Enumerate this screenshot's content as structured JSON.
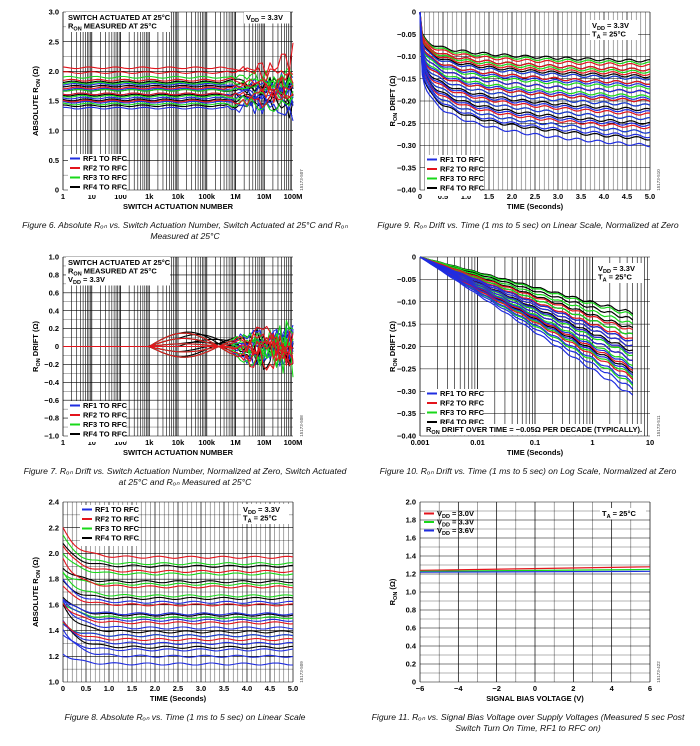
{
  "figure_ids": [
    "15173-507",
    "15173-508",
    "15173-509",
    "15173-510",
    "15173-511",
    "15173-422"
  ],
  "captions": [
    "Figure 6. Absolute Rₒₙ vs. Switch Actuation Number, Switch Actuated at 25°C and Rₒₙ Measured at 25°C",
    "Figure 7. Rₒₙ Drift vs. Switch Actuation Number, Normalized at Zero, Switch Actuated at 25°C and Rₒₙ Measured at 25°C",
    "Figure 8. Absolute Rₒₙ vs. Time (1 ms to 5 sec) on Linear Scale",
    "Figure 9. Rₒₙ Drift vs. Time (1 ms to 5 sec) on Linear Scale, Normalized at Zero",
    "Figure 10. Rₒₙ Drift vs. Time (1 ms to 5 sec) on Log Scale, Normalized at Zero",
    "Figure 11. Rₒₙ vs. Signal Bias Voltage over Supply Voltages (Measured 5 sec Post Switch Turn On Time, RF1 to RFC on)"
  ],
  "colors": {
    "rf1": "#1f2de0",
    "rf2": "#e3141c",
    "rf3": "#18d81a",
    "rf4": "#000000",
    "grid": "#000000"
  },
  "chart_data": [
    {
      "id": "fig6",
      "type": "line",
      "xscale": "log",
      "xlim": [
        1,
        100000000
      ],
      "ylim": [
        0,
        3.0
      ],
      "xticks": [
        "1",
        "10",
        "100",
        "1k",
        "10k",
        "100k",
        "1M",
        "10M",
        "100M"
      ],
      "yticks": [
        "0",
        "0.5",
        "1.0",
        "1.5",
        "2.0",
        "2.5",
        "3.0"
      ],
      "xlabel": "SWITCH ACTUATION NUMBER",
      "ylabel": "ABSOLUTE R_ON (Ω)",
      "annotations": [
        [
          "SWITCH ACTUATED AT 25°C",
          "R_ON MEASURED AT 25°C"
        ],
        [
          "V_DD = 3.3V"
        ]
      ],
      "legend": [
        "RF1 TO RFC",
        "RF2 TO RFC",
        "RF3 TO RFC",
        "RF4 TO RFC"
      ],
      "legend_position": "bottom-left",
      "series_levels": {
        "RF1 TO RFC": [
          1.38,
          1.48,
          1.55,
          1.62,
          1.7,
          1.78
        ],
        "RF2 TO RFC": [
          1.5,
          1.62,
          1.72,
          1.85,
          1.98,
          2.06
        ],
        "RF3 TO RFC": [
          1.45,
          1.58,
          1.68,
          1.8,
          1.9
        ],
        "RF4 TO RFC": [
          1.42,
          1.52,
          1.6,
          1.68,
          1.75,
          1.82
        ]
      }
    },
    {
      "id": "fig7",
      "type": "line",
      "xscale": "log",
      "xlim": [
        1,
        100000000
      ],
      "ylim": [
        -1.0,
        1.0
      ],
      "xticks": [
        "1",
        "10",
        "100",
        "1k",
        "10k",
        "100k",
        "1M",
        "10M",
        "100M"
      ],
      "yticks": [
        "−1.0",
        "−0.8",
        "−0.6",
        "−0.4",
        "−0.2",
        "0",
        "0.2",
        "0.4",
        "0.6",
        "0.8",
        "1.0"
      ],
      "xlabel": "SWITCH ACTUATION NUMBER",
      "ylabel": "R_ON DRIFT (Ω)",
      "annotations": [
        [
          "SWITCH ACTUATED AT 25°C",
          "R_ON MEASURED AT 25°C",
          "V_DD = 3.3V"
        ]
      ],
      "legend": [
        "RF1 TO RFC",
        "RF2 TO RFC",
        "RF3 TO RFC",
        "RF4 TO RFC"
      ],
      "legend_position": "bottom-left"
    },
    {
      "id": "fig8",
      "type": "line",
      "xlim": [
        0,
        5.0
      ],
      "ylim": [
        1.0,
        2.4
      ],
      "xticks": [
        "0",
        "0.5",
        "1.0",
        "1.5",
        "2.0",
        "2.5",
        "3.0",
        "3.5",
        "4.0",
        "4.5",
        "5.0"
      ],
      "yticks": [
        "1.0",
        "1.2",
        "1.4",
        "1.6",
        "1.8",
        "2.0",
        "2.2",
        "2.4"
      ],
      "xlabel": "TIME (Seconds)",
      "ylabel": "ABSOLUTE R_ON (Ω)",
      "annotations": [
        [
          "V_DD = 3.3V",
          "T_A = 25°C"
        ]
      ],
      "legend": [
        "RF1 TO RFC",
        "RF2 TO RFC",
        "RF3 TO RFC",
        "RF4 TO RFC"
      ],
      "legend_position": "top-left",
      "series_final_levels": {
        "RF1 TO RFC": [
          1.14,
          1.2,
          1.25,
          1.3,
          1.36,
          1.42,
          1.48,
          1.53,
          1.62
        ],
        "RF2 TO RFC": [
          1.33,
          1.46,
          1.6,
          1.74,
          1.86,
          1.97
        ],
        "RF3 TO RFC": [
          1.36,
          1.5,
          1.67,
          1.76,
          1.84,
          1.92
        ],
        "RF4 TO RFC": [
          1.27,
          1.39,
          1.52,
          1.65,
          1.78,
          1.9
        ]
      }
    },
    {
      "id": "fig9",
      "type": "line",
      "xlim": [
        0,
        5.0
      ],
      "ylim": [
        -0.4,
        0
      ],
      "xticks": [
        "0",
        "0.5",
        "1.0",
        "1.5",
        "2.0",
        "2.5",
        "3.0",
        "3.5",
        "4.0",
        "4.5",
        "5.0"
      ],
      "yticks": [
        "−0.40",
        "−0.35",
        "−0.30",
        "−0.25",
        "−0.20",
        "−0.15",
        "−0.10",
        "−0.05",
        "0"
      ],
      "xlabel": "TIME (Seconds)",
      "ylabel": "R_ON DRIFT (Ω)",
      "annotations": [
        [
          "V_DD = 3.3V",
          "T_A = 25°C"
        ]
      ],
      "legend": [
        "RF1 TO RFC",
        "RF2 TO RFC",
        "RF3 TO RFC",
        "RF4 TO RFC"
      ],
      "legend_position": "bottom-left"
    },
    {
      "id": "fig10",
      "type": "line",
      "xscale": "log",
      "xlim": [
        0.001,
        10
      ],
      "ylim": [
        -0.4,
        0
      ],
      "xticks": [
        "0.001",
        "0.01",
        "0.1",
        "1",
        "10"
      ],
      "yticks": [
        "−0.40",
        "−0.35",
        "−0.30",
        "−0.25",
        "−0.20",
        "−0.15",
        "−0.10",
        "−0.05",
        "0"
      ],
      "xlabel": "TIME (Seconds)",
      "ylabel": "R_ON DRIFT (Ω)",
      "annotations": [
        [
          "V_DD = 3.3V",
          "T_A = 25°C"
        ],
        [
          "R_ON DRIFT OVER TIME = −0.05Ω PER DECADE (TYPICALLY)."
        ]
      ],
      "legend": [
        "RF1 TO RFC",
        "RF2 TO RFC",
        "RF3 TO RFC",
        "RF4 TO RFC"
      ],
      "legend_position": "bottom-left"
    },
    {
      "id": "fig11",
      "type": "line",
      "xlim": [
        -6,
        6
      ],
      "ylim": [
        0,
        2.0
      ],
      "xticks": [
        "−6",
        "−4",
        "−2",
        "0",
        "2",
        "4",
        "6"
      ],
      "yticks": [
        "0",
        "0.2",
        "0.4",
        "0.6",
        "0.8",
        "1.0",
        "1.2",
        "1.4",
        "1.6",
        "1.8",
        "2.0"
      ],
      "xlabel": "SIGNAL BIAS VOLTAGE (V)",
      "ylabel": "R_ON (Ω)",
      "annotations": [
        [
          "T_A = 25°C"
        ]
      ],
      "legend": [
        "V_DD = 3.0V",
        "V_DD = 3.3V",
        "V_DD = 3.6V"
      ],
      "legend_position": "top-left",
      "series": [
        {
          "name": "V_DD = 3.0V",
          "x": [
            -6,
            6
          ],
          "values": [
            1.24,
            1.28
          ]
        },
        {
          "name": "V_DD = 3.3V",
          "x": [
            -6,
            6
          ],
          "values": [
            1.23,
            1.25
          ]
        },
        {
          "name": "V_DD = 3.6V",
          "x": [
            -6,
            6
          ],
          "values": [
            1.22,
            1.23
          ]
        }
      ]
    }
  ]
}
